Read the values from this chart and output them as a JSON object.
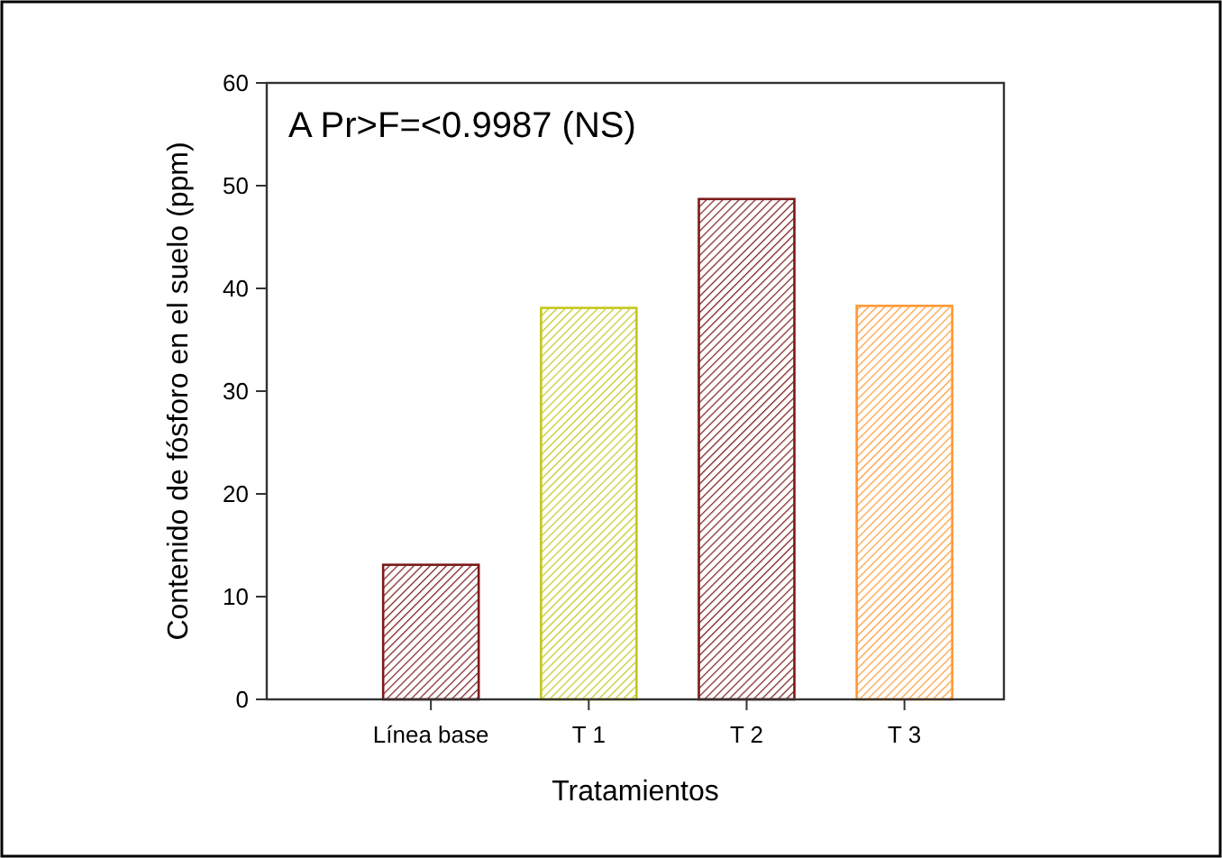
{
  "chart_data": {
    "type": "bar",
    "categories": [
      "Línea base",
      "T 1",
      "T 2",
      "T 3"
    ],
    "values": [
      13.1,
      38.1,
      48.7,
      38.3
    ],
    "colors": [
      "#7a1a1a",
      "#c2c81e",
      "#7a1a1a",
      "#ff9933"
    ],
    "ylim": [
      0,
      60
    ],
    "yticks": [
      0,
      10,
      20,
      30,
      40,
      50,
      60
    ],
    "xlabel": "Tratamientos",
    "ylabel": "Contenido de fósforo en el suelo (ppm)",
    "annotations": [
      "A Pr>F=<0.9987 (NS)"
    ],
    "grid": false
  }
}
